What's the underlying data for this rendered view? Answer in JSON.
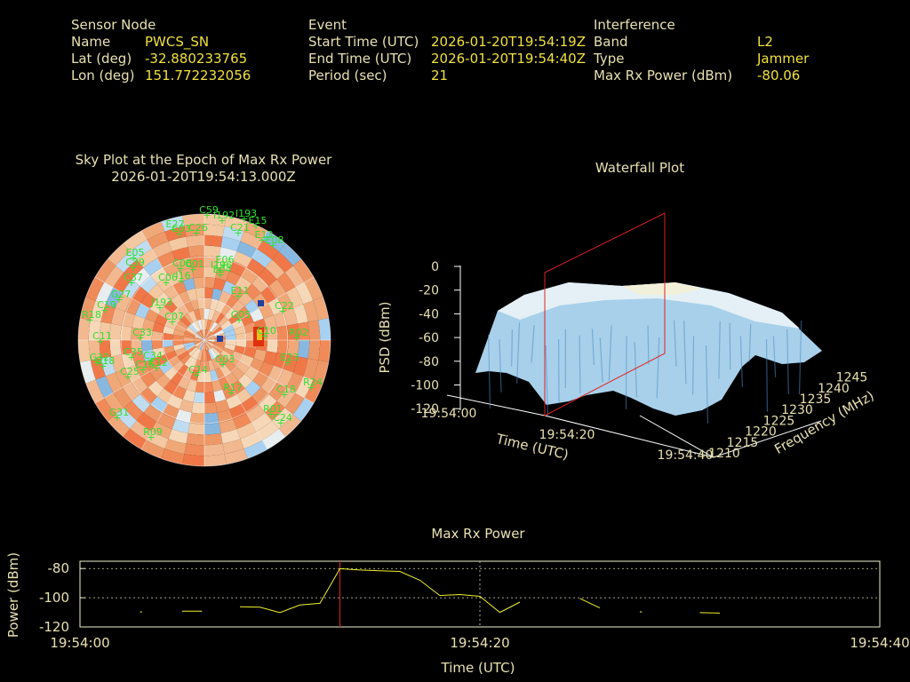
{
  "header": {
    "sensor": {
      "title": "Sensor Node",
      "name_label": "Name",
      "name": "PWCS_SN",
      "lat_label": "Lat (deg)",
      "lat": "-32.880233765",
      "lon_label": "Lon (deg)",
      "lon": "151.772232056"
    },
    "event": {
      "title": "Event",
      "start_label": "Start Time (UTC)",
      "start": "2026-01-20T19:54:19Z",
      "end_label": "End Time (UTC)",
      "end": "2026-01-20T19:54:40Z",
      "period_label": "Period (sec)",
      "period": "21"
    },
    "interference": {
      "title": "Interference",
      "band_label": "Band",
      "band": "L2",
      "type_label": "Type",
      "type": "Jammer",
      "power_label": "Max Rx Power (dBm)",
      "power": "-80.06"
    }
  },
  "colors": {
    "background": "#000000",
    "label": "#e8e0b0",
    "value": "#f0e040",
    "satellite": "#30e030",
    "marker": "#e02020",
    "trace": "#f0f030",
    "sky_warm": "#f08050",
    "sky_cool": "#a8d0f0"
  },
  "chart_data": [
    {
      "type": "heatmap",
      "kind": "sky-plot",
      "title": "Sky Plot at the Epoch of Max Rx Power",
      "subtitle": "2026-01-20T19:54:13.000Z",
      "satellites": [
        "C59",
        "I193",
        "I192",
        "C21",
        "E15",
        "E13",
        "E08",
        "E27",
        "C26",
        "C03",
        "E05",
        "C39",
        "C08",
        "C01",
        "C37",
        "C06",
        "I16",
        "I196",
        "E11",
        "E04",
        "E06",
        "C22",
        "G05",
        "C10",
        "R02",
        "J193",
        "C07",
        "C19",
        "G27",
        "C11",
        "R18",
        "C33",
        "C35",
        "C34",
        "E23",
        "G32",
        "G18",
        "C25",
        "C16",
        "C12",
        "C14",
        "G03",
        "R17",
        "R24",
        "C18",
        "R01",
        "C24",
        "G31",
        "R09"
      ]
    },
    {
      "type": "area",
      "kind": "waterfall-3d",
      "title": "Waterfall Plot",
      "xlabel": "Time (UTC)",
      "ylabel": "Frequency (MHz)",
      "zlabel": "PSD (dBm)",
      "x_ticks": [
        "19:54:00",
        "19:54:20",
        "19:54:40"
      ],
      "y_ticks": [
        "1210",
        "1215",
        "1220",
        "1225",
        "1230",
        "1235",
        "1240",
        "1245"
      ],
      "z_ticks": [
        "0",
        "-20",
        "-40",
        "-60",
        "-80",
        "-100",
        "-120"
      ],
      "zlim": [
        -120,
        0
      ]
    },
    {
      "type": "line",
      "title": "Max Rx Power",
      "xlabel": "Time (UTC)",
      "ylabel": "Power (dBm)",
      "x_ticks": [
        "19:54:00",
        "19:54:20",
        "19:54:40"
      ],
      "y_ticks": [
        "-80",
        "-100",
        "-120"
      ],
      "xlim": [
        0,
        40
      ],
      "ylim": [
        -120,
        -75
      ],
      "marker_x": 13,
      "segments": [
        [
          [
            3.0,
            -109.8
          ],
          [
            3.1,
            -109.6
          ]
        ],
        [
          [
            5.1,
            -109.2
          ],
          [
            6.1,
            -109.2
          ]
        ],
        [
          [
            8.0,
            -106.2
          ],
          [
            9.0,
            -106.5
          ],
          [
            10.0,
            -110.2
          ],
          [
            11.0,
            -105.0
          ],
          [
            12.0,
            -103.8
          ],
          [
            13.0,
            -80.1
          ],
          [
            14.0,
            -81.0
          ],
          [
            15.0,
            -81.5
          ],
          [
            16.0,
            -82.0
          ],
          [
            17.0,
            -88.0
          ],
          [
            18.0,
            -98.5
          ],
          [
            19.0,
            -97.8
          ],
          [
            20.0,
            -99.0
          ],
          [
            21.0,
            -110.0
          ],
          [
            22.0,
            -103.0
          ]
        ],
        [
          [
            25.0,
            -100.5
          ],
          [
            26.0,
            -107.0
          ]
        ],
        [
          [
            28.0,
            -109.6
          ],
          [
            28.1,
            -109.8
          ]
        ],
        [
          [
            31.0,
            -110.2
          ],
          [
            32.0,
            -110.5
          ]
        ]
      ]
    }
  ]
}
